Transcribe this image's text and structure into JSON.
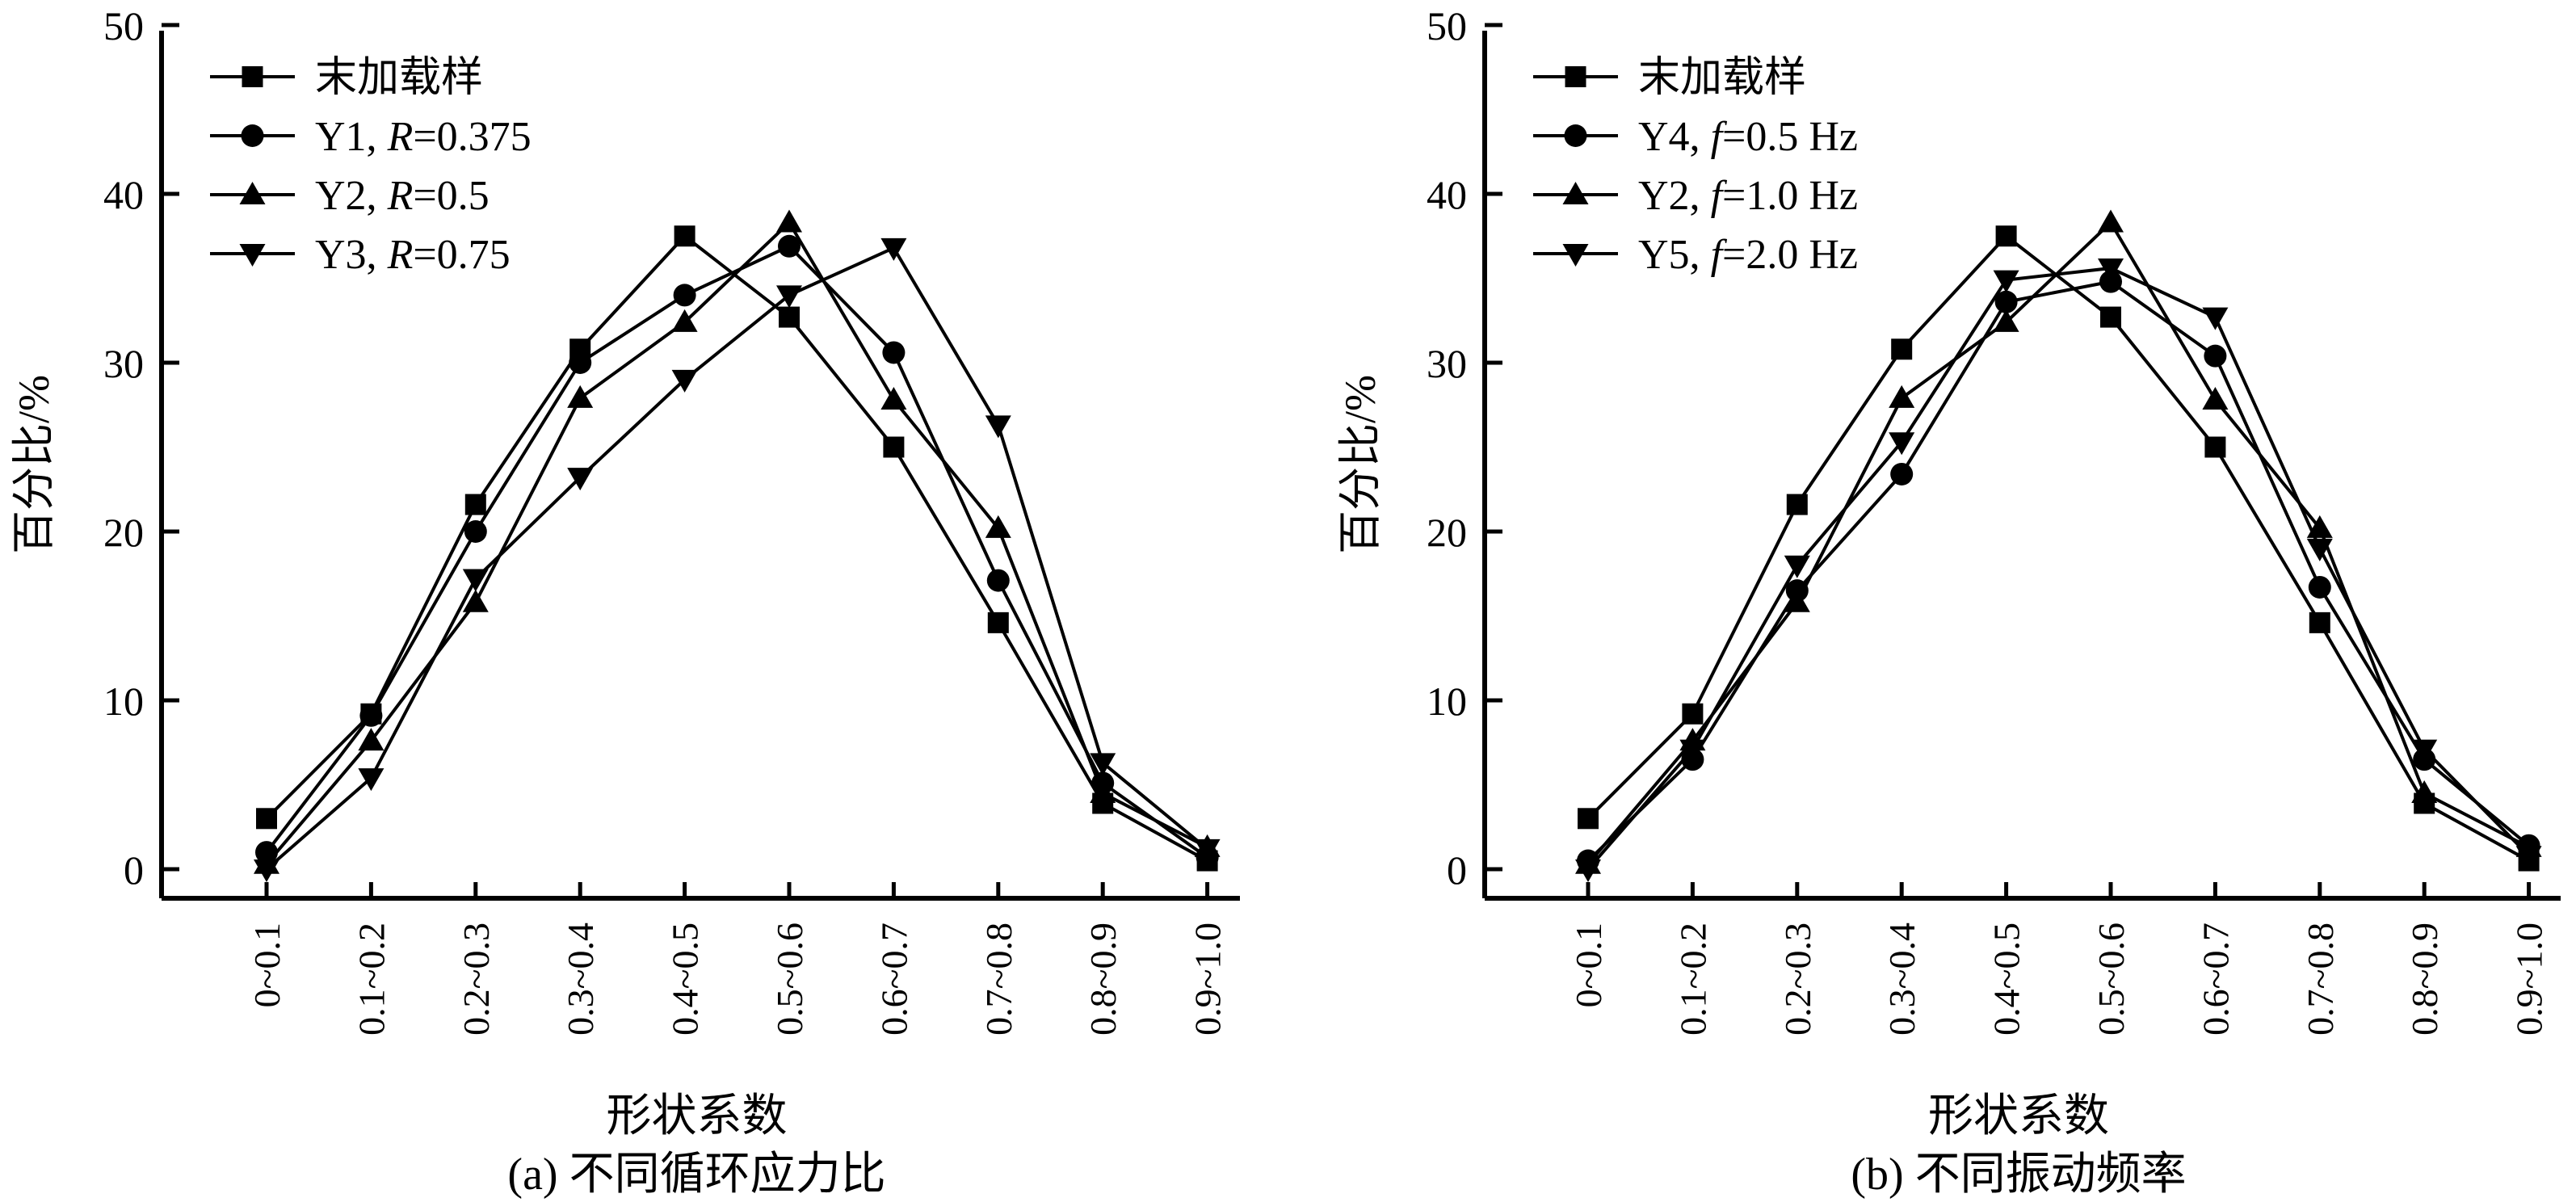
{
  "chart_data": [
    {
      "type": "line",
      "ylabel": "百分比/%",
      "xlabel": "形状系数",
      "caption": "(a) 不同循环应力比",
      "ylim": [
        0,
        50
      ],
      "yticks": [
        0,
        10,
        20,
        30,
        40,
        50
      ],
      "legend_position": "top-left",
      "categories": [
        "0~0.1",
        "0.1~0.2",
        "0.2~0.3",
        "0.3~0.4",
        "0.4~0.5",
        "0.5~0.6",
        "0.6~0.7",
        "0.7~0.8",
        "0.8~0.9",
        "0.9~1.0"
      ],
      "series": [
        {
          "name": "末加载样",
          "prefix": "末加载样",
          "param": "",
          "value": "",
          "marker": "square",
          "values": [
            3.0,
            9.2,
            21.6,
            30.8,
            37.5,
            32.7,
            25.0,
            14.6,
            3.9,
            0.5
          ]
        },
        {
          "name": "Y1, R=0.375",
          "prefix": "Y1, ",
          "param": "R",
          "value": "=0.375",
          "marker": "circle",
          "values": [
            1.0,
            9.1,
            20.0,
            30.0,
            34.0,
            36.9,
            30.6,
            17.1,
            5.1,
            0.7
          ]
        },
        {
          "name": "Y2, R=0.5",
          "prefix": "Y2, ",
          "param": "R",
          "value": "=0.5",
          "marker": "triangle-up",
          "values": [
            0.3,
            7.6,
            15.8,
            27.9,
            32.4,
            38.3,
            27.8,
            20.2,
            4.5,
            1.3
          ]
        },
        {
          "name": "Y3, R=0.75",
          "prefix": "Y3, ",
          "param": "R",
          "value": "=0.75",
          "marker": "triangle-down",
          "values": [
            0.0,
            5.4,
            17.2,
            23.2,
            29.0,
            34.0,
            36.8,
            26.3,
            6.3,
            1.2
          ]
        }
      ]
    },
    {
      "type": "line",
      "ylabel": "百分比/%",
      "xlabel": "形状系数",
      "caption": "(b) 不同振动频率",
      "ylim": [
        0,
        50
      ],
      "yticks": [
        0,
        10,
        20,
        30,
        40,
        50
      ],
      "legend_position": "top-left",
      "categories": [
        "0~0.1",
        "0.1~0.2",
        "0.2~0.3",
        "0.3~0.4",
        "0.4~0.5",
        "0.5~0.6",
        "0.6~0.7",
        "0.7~0.8",
        "0.8~0.9",
        "0.9~1.0"
      ],
      "series": [
        {
          "name": "末加载样",
          "prefix": "末加载样",
          "param": "",
          "value": "",
          "marker": "square",
          "values": [
            3.0,
            9.2,
            21.6,
            30.8,
            37.5,
            32.7,
            25.0,
            14.6,
            3.9,
            0.5
          ]
        },
        {
          "name": "Y4, f=0.5 Hz",
          "prefix": "Y4, ",
          "param": "f",
          "value": "=0.5 Hz",
          "marker": "circle",
          "values": [
            0.5,
            6.5,
            16.5,
            23.4,
            33.6,
            34.8,
            30.4,
            16.7,
            6.5,
            1.4
          ]
        },
        {
          "name": "Y2, f=1.0 Hz",
          "prefix": "Y2, ",
          "param": "f",
          "value": "=1.0 Hz",
          "marker": "triangle-up",
          "values": [
            0.3,
            7.6,
            15.8,
            27.9,
            32.4,
            38.3,
            27.8,
            20.2,
            4.5,
            1.3
          ]
        },
        {
          "name": "Y5, f=2.0 Hz",
          "prefix": "Y5, ",
          "param": "f",
          "value": "=2.0 Hz",
          "marker": "triangle-down",
          "values": [
            0.0,
            7.1,
            18.0,
            25.3,
            34.9,
            35.6,
            32.7,
            19.0,
            7.1,
            0.8
          ]
        }
      ]
    }
  ]
}
